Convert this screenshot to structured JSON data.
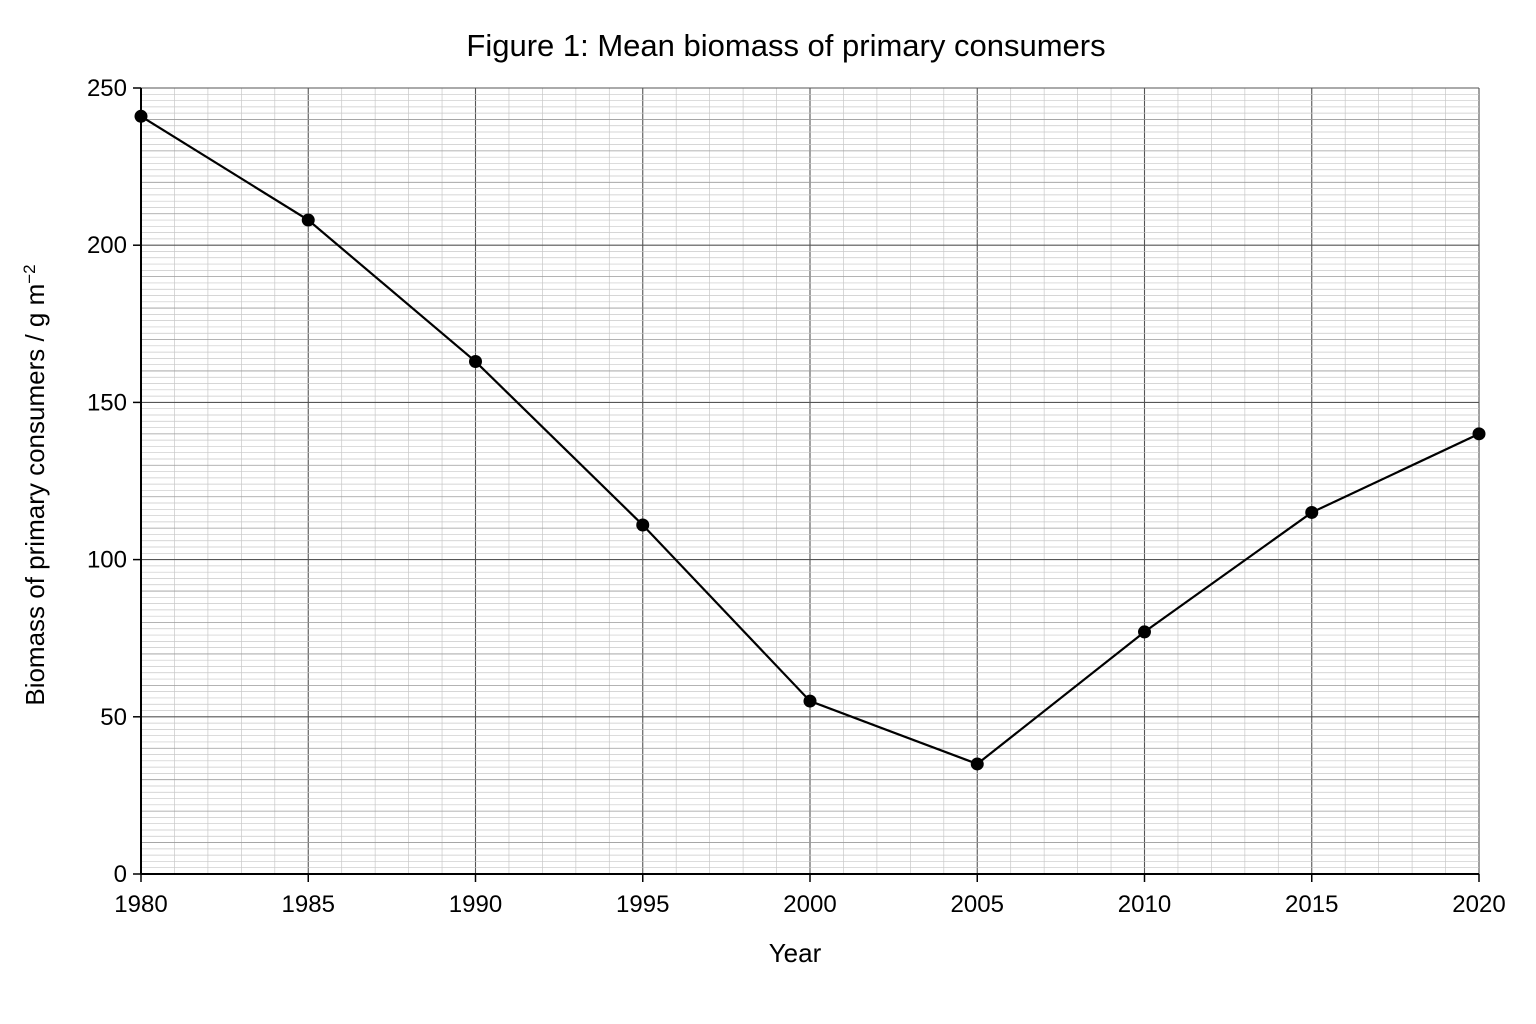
{
  "chart_data": {
    "type": "line",
    "title": "Figure 1: Mean biomass of primary consumers",
    "xlabel": "Year",
    "ylabel_main": "Biomass of primary consumers / g m",
    "ylabel_sup": "−2",
    "xlim": [
      1980,
      2020
    ],
    "ylim": [
      0,
      250
    ],
    "x_ticks": [
      1980,
      1985,
      1990,
      1995,
      2000,
      2005,
      2010,
      2015,
      2020
    ],
    "y_ticks": [
      0,
      50,
      100,
      150,
      200,
      250
    ],
    "grid": true,
    "series": [
      {
        "x": [
          1980,
          1985,
          1990,
          1995,
          2000,
          2005,
          2010,
          2015,
          2020
        ],
        "values": [
          241,
          208,
          163,
          111,
          55,
          35,
          77,
          115,
          140
        ]
      }
    ]
  }
}
